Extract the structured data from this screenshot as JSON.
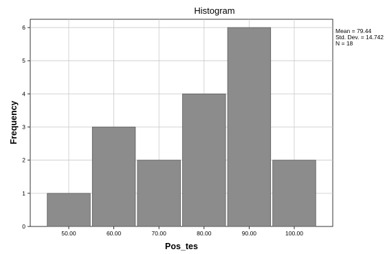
{
  "chart_data": {
    "type": "bar",
    "title": "Histogram",
    "xlabel": "Pos_tes",
    "ylabel": "Frequency",
    "categories": [
      "50.00",
      "60.00",
      "70.00",
      "80.00",
      "90.00",
      "100.00"
    ],
    "values": [
      1,
      3,
      2,
      4,
      6,
      2
    ],
    "ylim": [
      0,
      6.25
    ],
    "yticks": [
      "0",
      "1",
      "2",
      "3",
      "4",
      "5",
      "6"
    ],
    "grid": true,
    "bar_color": "#8c8c8c",
    "stats": {
      "mean": "Mean = 79.44",
      "std": "Std. Dev. = 14.742",
      "n": "N = 18"
    }
  }
}
